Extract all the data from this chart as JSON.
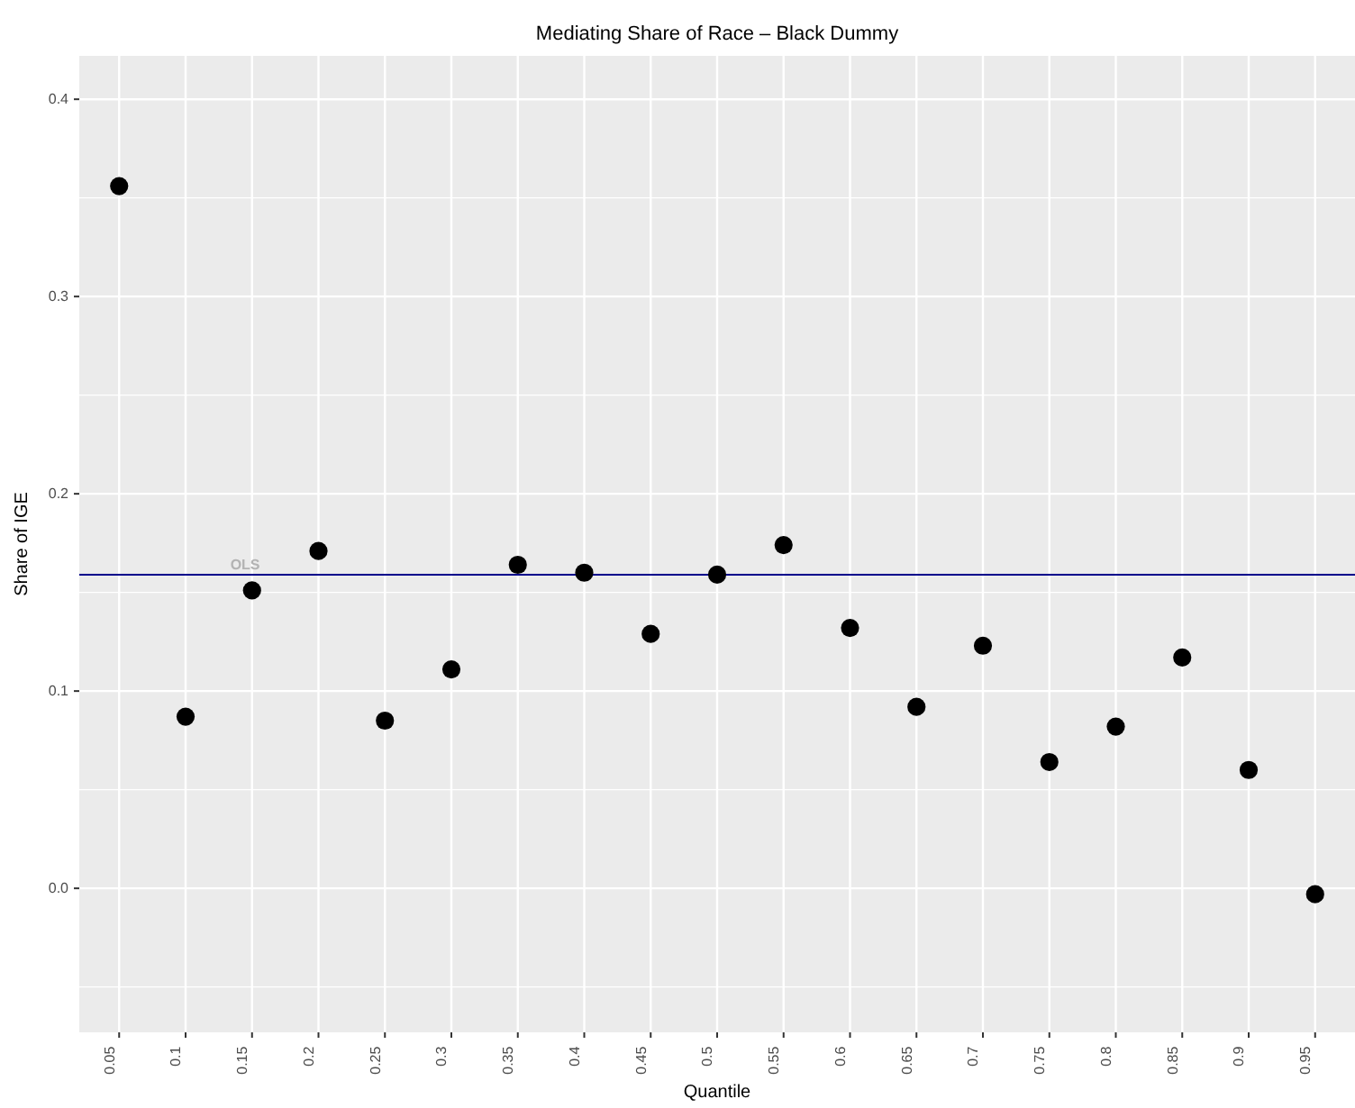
{
  "chart_data": {
    "type": "scatter",
    "title": "Mediating Share of Race – Black Dummy",
    "xlabel": "Quantile",
    "ylabel": "Share of IGE",
    "categories": [
      "0.05",
      "0.1",
      "0.15",
      "0.2",
      "0.25",
      "0.3",
      "0.35",
      "0.4",
      "0.45",
      "0.5",
      "0.55",
      "0.6",
      "0.65",
      "0.7",
      "0.75",
      "0.8",
      "0.85",
      "0.9",
      "0.95"
    ],
    "series": [
      {
        "color": "#000000",
        "values": [
          0.356,
          0.087,
          0.151,
          0.171,
          0.085,
          0.111,
          0.164,
          0.16,
          0.129,
          0.159,
          0.174,
          0.132,
          0.092,
          0.123,
          0.064,
          0.082,
          0.117,
          0.06,
          -0.003
        ]
      }
    ],
    "ylim": [
      -0.073,
      0.422
    ],
    "yticks": [
      {
        "value": -0.05,
        "label": null
      },
      {
        "value": 0,
        "label": "0.0"
      },
      {
        "value": 0.05,
        "label": null
      },
      0.1,
      {
        "value": 0.15,
        "label": null
      },
      0.2,
      {
        "value": 0.25,
        "label": null
      },
      0.3,
      {
        "value": 0.35,
        "label": null
      },
      0.4
    ],
    "ref_lines": [
      {
        "axis": "y",
        "value": 0.159,
        "label": "OLS",
        "color": "#00008b"
      }
    ],
    "grid": true,
    "marker": "circle"
  }
}
